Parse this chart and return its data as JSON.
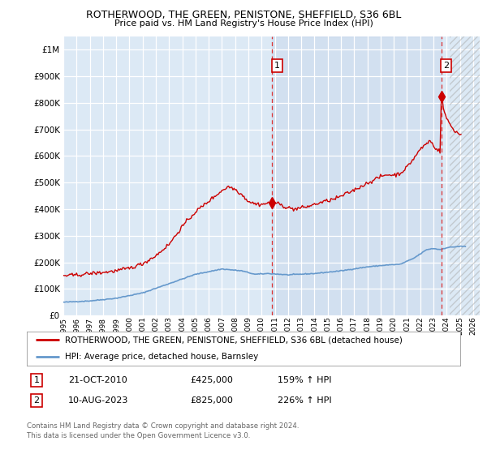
{
  "title": "ROTHERWOOD, THE GREEN, PENISTONE, SHEFFIELD, S36 6BL",
  "subtitle": "Price paid vs. HM Land Registry's House Price Index (HPI)",
  "ytick_values": [
    0,
    100000,
    200000,
    300000,
    400000,
    500000,
    600000,
    700000,
    800000,
    900000,
    1000000
  ],
  "ylim": [
    0,
    1050000
  ],
  "xlim_start": 1995.0,
  "xlim_end": 2026.5,
  "background_color": "#dce9f5",
  "plot_bg": "#dce9f5",
  "grid_color": "#c8d8e8",
  "red_line_color": "#cc0000",
  "blue_line_color": "#6699cc",
  "ann1_x": 2010.8,
  "ann1_y": 425000,
  "ann2_x": 2023.6,
  "ann2_y": 825000,
  "ann1_label": "1",
  "ann2_label": "2",
  "ann1_date": "21-OCT-2010",
  "ann1_price": "£425,000",
  "ann1_hpi": "159% ↑ HPI",
  "ann2_date": "10-AUG-2023",
  "ann2_price": "£825,000",
  "ann2_hpi": "226% ↑ HPI",
  "legend_red": "ROTHERWOOD, THE GREEN, PENISTONE, SHEFFIELD, S36 6BL (detached house)",
  "legend_blue": "HPI: Average price, detached house, Barnsley",
  "footer1": "Contains HM Land Registry data © Crown copyright and database right 2024.",
  "footer2": "This data is licensed under the Open Government Licence v3.0.",
  "hatch_start": 2024.25,
  "blue_shade_x1": 2010.8,
  "blue_shade_x2": 2023.6
}
